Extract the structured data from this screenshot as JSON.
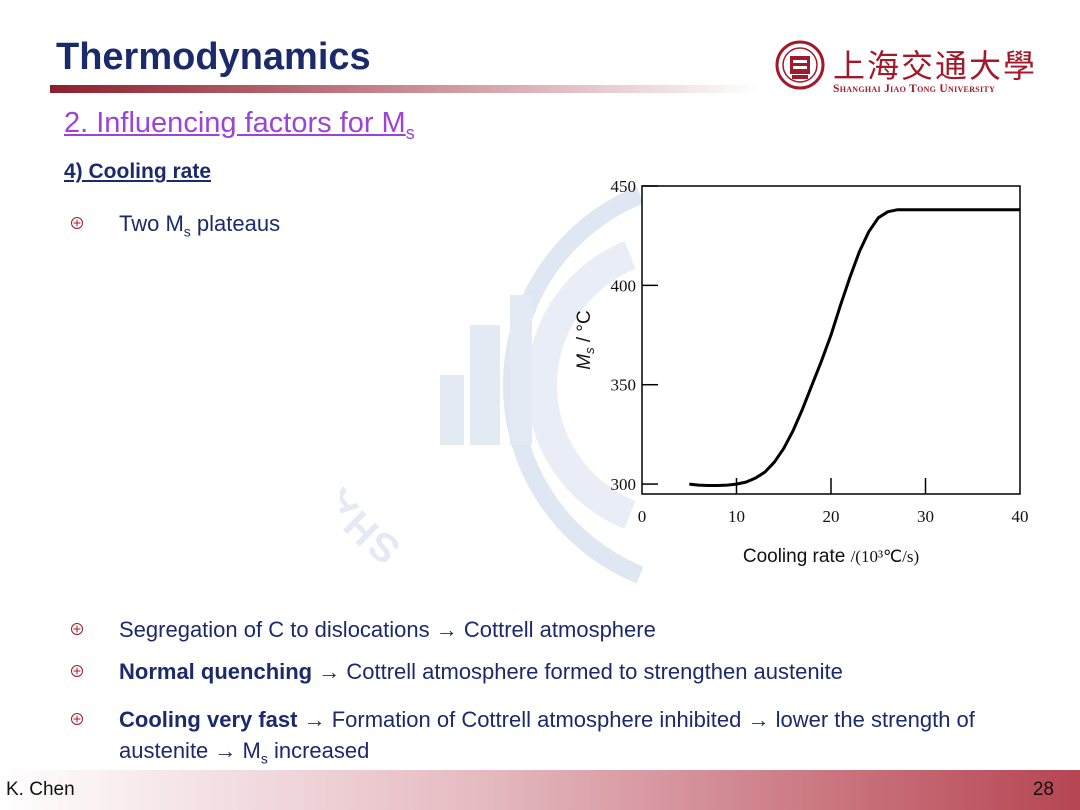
{
  "slide": {
    "title": "Thermodynamics",
    "subtitle_main": "2. Influencing factors for M",
    "subtitle_sub": "s",
    "section": "4) Cooling rate",
    "logo_cn": "上海交通大學",
    "logo_en": "Shanghai Jiao Tong University",
    "watermark_text": "SHANGHAI JIAO",
    "bullets": [
      {
        "parts": [
          {
            "t": "Two M"
          },
          {
            "t": "s",
            "sub": true
          },
          {
            "t": " plateaus"
          }
        ]
      },
      {
        "parts": [
          {
            "t": "Segregation of C to dislocations → Cottrell atmosphere"
          }
        ]
      },
      {
        "parts": [
          {
            "t": "Normal quenching",
            "b": true
          },
          {
            "t": " → Cottrell atmosphere formed to strengthen austenite"
          }
        ]
      },
      {
        "parts": [
          {
            "t": "Cooling very fast",
            "b": true
          },
          {
            "t": " → Formation of Cottrell atmosphere inhibited → lower the strength of austenite → M"
          },
          {
            "t": "s",
            "sub": true
          },
          {
            "t": " increased"
          }
        ]
      }
    ],
    "footer_author": "K. Chen",
    "footer_page": "28"
  },
  "colors": {
    "title": "#1b2a6b",
    "subtitle": "#9b44d6",
    "bullet_icon": "#a3182a",
    "logo": "#a3182a",
    "curve": "#000000"
  },
  "chart_data": {
    "type": "line",
    "xlabel": "Cooling rate",
    "xlabel_unit": "/(10³℃/s)",
    "ylabel": "M",
    "ylabel_sub": "s",
    "ylabel_unit": " / °C",
    "xlim": [
      0,
      40
    ],
    "ylim": [
      295,
      450
    ],
    "xticks": [
      0,
      10,
      20,
      30,
      40
    ],
    "yticks": [
      300,
      350,
      400,
      450
    ],
    "grid": false,
    "series": [
      {
        "x": [
          5,
          6,
          7,
          8,
          9,
          10,
          11,
          12,
          13,
          14,
          15,
          16,
          17,
          18,
          19,
          20,
          21,
          22,
          23,
          24,
          25,
          26,
          27,
          28,
          29,
          30,
          35,
          40
        ],
        "values": [
          300,
          299.5,
          299.3,
          299.3,
          299.5,
          300,
          301,
          303,
          306,
          311,
          318,
          327,
          338,
          350,
          362,
          375,
          390,
          404,
          417,
          427,
          434,
          437,
          438,
          438,
          438,
          438,
          438,
          438
        ]
      }
    ]
  }
}
